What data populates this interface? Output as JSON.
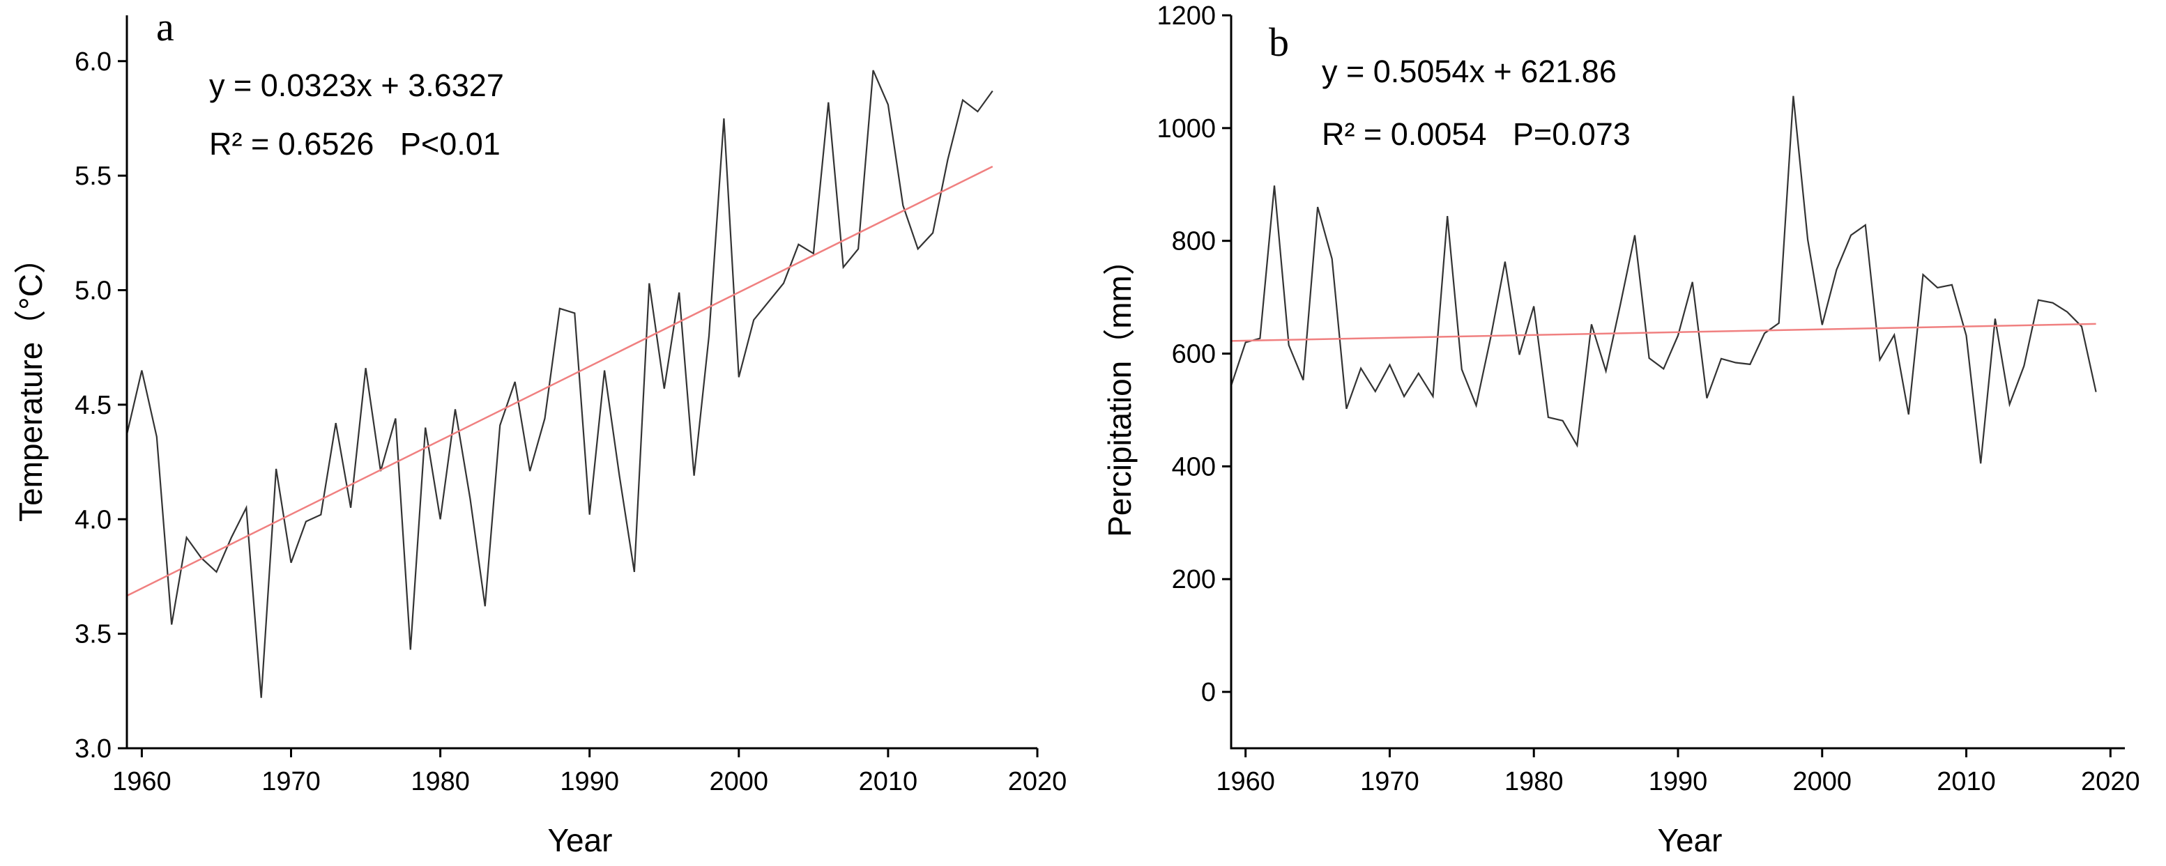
{
  "chart_data": [
    {
      "type": "line",
      "panel_label": "a",
      "title": "",
      "xlabel": "Year",
      "ylabel": "Temperature（°C）",
      "xlim": [
        1959,
        2020
      ],
      "ylim": [
        3.0,
        6.2
      ],
      "xticks": [
        1960,
        1970,
        1980,
        1990,
        2000,
        2010,
        2020
      ],
      "yticks": [
        3.0,
        3.5,
        4.0,
        4.5,
        5.0,
        5.5,
        6.0
      ],
      "ytick_labels": [
        "3.0",
        "3.5",
        "4.0",
        "4.5",
        "5.0",
        "5.5",
        "6.0"
      ],
      "equation": "y = 0.0323x + 3.6327",
      "stats": "R² = 0.6526   P<0.01",
      "line_color": "#333333",
      "trend_color": "#f08080",
      "series": [
        {
          "name": "Temperature",
          "x": [
            1959,
            1960,
            1961,
            1962,
            1963,
            1964,
            1965,
            1966,
            1967,
            1968,
            1969,
            1970,
            1971,
            1972,
            1973,
            1974,
            1975,
            1976,
            1977,
            1978,
            1979,
            1980,
            1981,
            1982,
            1983,
            1984,
            1985,
            1986,
            1987,
            1988,
            1989,
            1990,
            1991,
            1992,
            1993,
            1994,
            1995,
            1996,
            1997,
            1998,
            1999,
            2000,
            2001,
            2002,
            2003,
            2004,
            2005,
            2006,
            2007,
            2008,
            2009,
            2010,
            2011,
            2012,
            2013,
            2014,
            2015,
            2016,
            2017
          ],
          "values": [
            4.37,
            4.65,
            4.36,
            3.54,
            3.92,
            3.83,
            3.77,
            3.92,
            4.05,
            3.22,
            4.22,
            3.81,
            3.99,
            4.02,
            4.42,
            4.05,
            4.66,
            4.21,
            4.44,
            3.43,
            4.4,
            4.0,
            4.48,
            4.09,
            3.62,
            4.41,
            4.6,
            4.21,
            4.44,
            4.92,
            4.9,
            4.02,
            4.65,
            4.19,
            3.77,
            5.03,
            4.57,
            4.99,
            4.19,
            4.8,
            5.75,
            4.62,
            4.87,
            4.95,
            5.03,
            5.2,
            5.16,
            5.82,
            5.1,
            5.18,
            5.96,
            5.81,
            5.37,
            5.18,
            5.25,
            5.57,
            5.83,
            5.78,
            5.87
          ]
        }
      ],
      "trend": {
        "x": [
          1959,
          2017
        ],
        "y": [
          3.666,
          5.54
        ]
      }
    },
    {
      "type": "line",
      "panel_label": "b",
      "title": "",
      "xlabel": "Year",
      "ylabel": "Percipitation（mm）",
      "xlim": [
        1959,
        2021
      ],
      "ylim": [
        -100,
        1200
      ],
      "xticks": [
        1960,
        1970,
        1980,
        1990,
        2000,
        2010,
        2020
      ],
      "yticks": [
        0,
        200,
        400,
        600,
        800,
        1000,
        1200
      ],
      "ytick_labels": [
        "0",
        "200",
        "400",
        "600",
        "800",
        "1000",
        "1200"
      ],
      "equation": "y = 0.5054x + 621.86",
      "stats": "R² = 0.0054   P=0.073",
      "line_color": "#333333",
      "trend_color": "#f08080",
      "series": [
        {
          "name": "Percipitation",
          "x": [
            1959,
            1960,
            1961,
            1962,
            1963,
            1964,
            1965,
            1966,
            1967,
            1968,
            1969,
            1970,
            1971,
            1972,
            1973,
            1974,
            1975,
            1976,
            1977,
            1978,
            1979,
            1980,
            1981,
            1982,
            1983,
            1984,
            1985,
            1986,
            1987,
            1988,
            1989,
            1990,
            1991,
            1992,
            1993,
            1994,
            1995,
            1996,
            1997,
            1998,
            1999,
            2000,
            2001,
            2002,
            2003,
            2004,
            2005,
            2006,
            2007,
            2008,
            2009,
            2010,
            2011,
            2012,
            2013,
            2014,
            2015,
            2016,
            2017,
            2018,
            2019
          ],
          "values": [
            543,
            620,
            627,
            898,
            615,
            553,
            860,
            768,
            502,
            574,
            533,
            580,
            524,
            565,
            524,
            844,
            572,
            508,
            628,
            763,
            598,
            684,
            487,
            481,
            437,
            652,
            569,
            687,
            810,
            592,
            573,
            632,
            727,
            521,
            591,
            584,
            581,
            636,
            654,
            1057,
            802,
            651,
            749,
            810,
            828,
            589,
            633,
            492,
            740,
            717,
            722,
            632,
            405,
            662,
            510,
            578,
            695,
            690,
            674,
            648,
            532
          ]
        }
      ],
      "trend": {
        "x": [
          1959,
          2019
        ],
        "y": [
          622.4,
          652.7
        ]
      }
    }
  ]
}
